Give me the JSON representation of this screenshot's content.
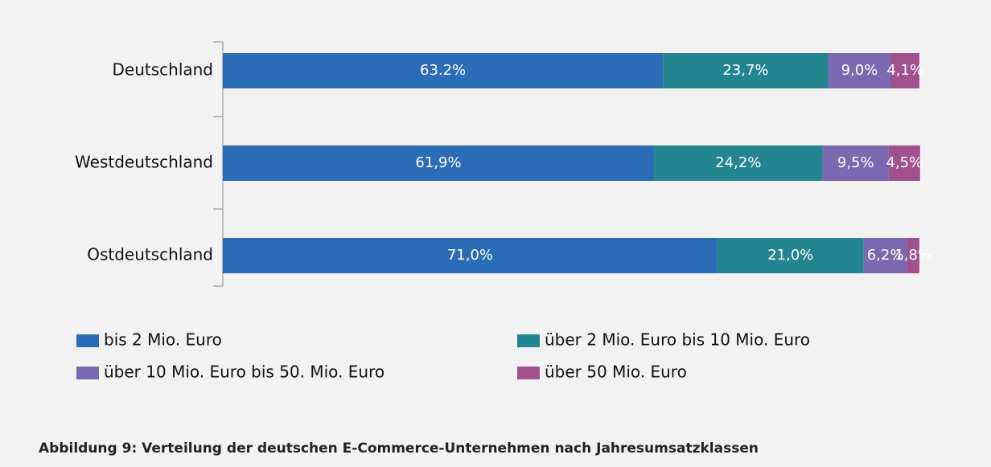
{
  "chart_data": {
    "type": "stacked_barh",
    "categories": [
      "Deutschland",
      "Westdeutschland",
      "Ostdeutschland"
    ],
    "series": [
      {
        "name": "bis 2 Mio. Euro",
        "color": "#2b6cb7",
        "values": [
          63.2,
          61.9,
          71.0
        ],
        "value_labels": [
          "63.2%",
          "61,9%",
          "71,0%"
        ]
      },
      {
        "name": "über 2 Mio. Euro bis 10 Mio. Euro",
        "color": "#238590",
        "values": [
          23.7,
          24.2,
          21.0
        ],
        "value_labels": [
          "23,7%",
          "24,2%",
          "21,0%"
        ]
      },
      {
        "name": "über 10 Mio. Euro bis 50. Mio. Euro",
        "color": "#7a68b0",
        "values": [
          9.0,
          9.5,
          6.2
        ],
        "value_labels": [
          "9,0%",
          "9,5%",
          "6,2%"
        ]
      },
      {
        "name": "über 50 Mio. Euro",
        "color": "#a1518e",
        "values": [
          4.1,
          4.5,
          1.8
        ],
        "value_labels": [
          "4,1%",
          "4,5%",
          "1,8%"
        ]
      }
    ],
    "xlim": [
      0,
      100
    ],
    "caption": "Abbildung 9: Verteilung der deutschen E-Commerce-Unternehmen nach Jahresumsatzklassen"
  }
}
